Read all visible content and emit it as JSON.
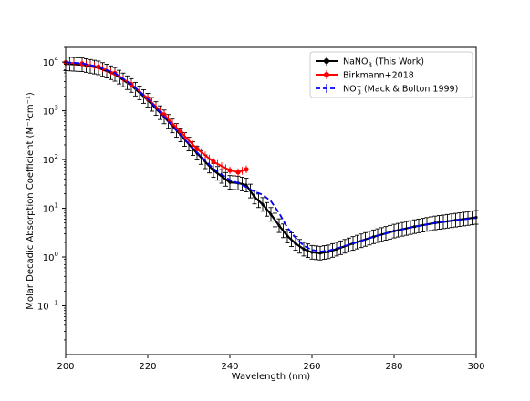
{
  "chart_data": {
    "type": "line",
    "title": "",
    "xlabel": "Wavelength (nm)",
    "ylabel": "Molar Decadic Absorption Coefficient (M⁻¹cm⁻¹)",
    "xlim": [
      200,
      300
    ],
    "ylim": [
      0.01,
      20000
    ],
    "yscale": "log",
    "grid": false,
    "legend_position": "top-right",
    "x_ticks": [
      200,
      220,
      240,
      260,
      280,
      300
    ],
    "y_ticks": [
      {
        "value": 0.1,
        "base": "10",
        "exp": "−1"
      },
      {
        "value": 1,
        "base": "10",
        "exp": "0"
      },
      {
        "value": 10,
        "base": "10",
        "exp": "1"
      },
      {
        "value": 100,
        "base": "10",
        "exp": "2"
      },
      {
        "value": 1000,
        "base": "10",
        "exp": "3"
      },
      {
        "value": 10000,
        "base": "10",
        "exp": "4"
      }
    ],
    "series": [
      {
        "name": "NaNO₃ (This Work)",
        "legend_main": "NaNO",
        "legend_sub": "3",
        "legend_rest": " (This Work)",
        "color": "#000000",
        "style": "solid-with-errorbars",
        "x": [
          200,
          204,
          208,
          212,
          216,
          220,
          224,
          228,
          232,
          236,
          240,
          242,
          244,
          246,
          248,
          250,
          252,
          254,
          256,
          258,
          260,
          262,
          264,
          266,
          270,
          275,
          280,
          285,
          290,
          295,
          300
        ],
        "y": [
          9200,
          8800,
          7600,
          5600,
          3300,
          1650,
          750,
          320,
          135,
          60,
          34,
          33,
          30,
          17,
          12,
          7.5,
          4.4,
          2.7,
          1.9,
          1.45,
          1.25,
          1.2,
          1.28,
          1.45,
          1.9,
          2.6,
          3.4,
          4.2,
          5,
          5.7,
          6.5
        ]
      },
      {
        "name": "Birkmann+2018",
        "legend_main": "Birkmann+2018",
        "legend_sub": "",
        "legend_rest": "",
        "color": "#ff0000",
        "style": "solid-with-markers",
        "x": [
          200,
          204,
          208,
          212,
          216,
          220,
          224,
          228,
          232,
          236,
          240,
          242,
          244
        ],
        "y": [
          9800,
          9300,
          8000,
          5900,
          3500,
          1800,
          830,
          370,
          165,
          90,
          60,
          55,
          63
        ]
      },
      {
        "name": "NO₃⁻ (Mack & Bolton 1999)",
        "legend_main": "NO",
        "legend_sub": "3",
        "legend_sup": "−",
        "legend_rest": "  (Mack & Bolton 1999)",
        "color": "#0000ff",
        "style": "dashed",
        "x": [
          200,
          204,
          208,
          212,
          216,
          220,
          224,
          228,
          232,
          236,
          240,
          242,
          244,
          246,
          248,
          250,
          252,
          254,
          256,
          258,
          260,
          262,
          264,
          266,
          270,
          275,
          280,
          285,
          290,
          295,
          300
        ],
        "y": [
          9900,
          9400,
          8000,
          5900,
          3500,
          1750,
          760,
          320,
          140,
          65,
          38,
          33,
          27,
          22,
          19,
          14,
          8,
          4,
          2.5,
          1.7,
          1.4,
          1.3,
          1.35,
          1.5,
          1.9,
          2.6,
          3.4,
          4.2,
          5,
          5.7,
          6.3
        ]
      }
    ]
  }
}
